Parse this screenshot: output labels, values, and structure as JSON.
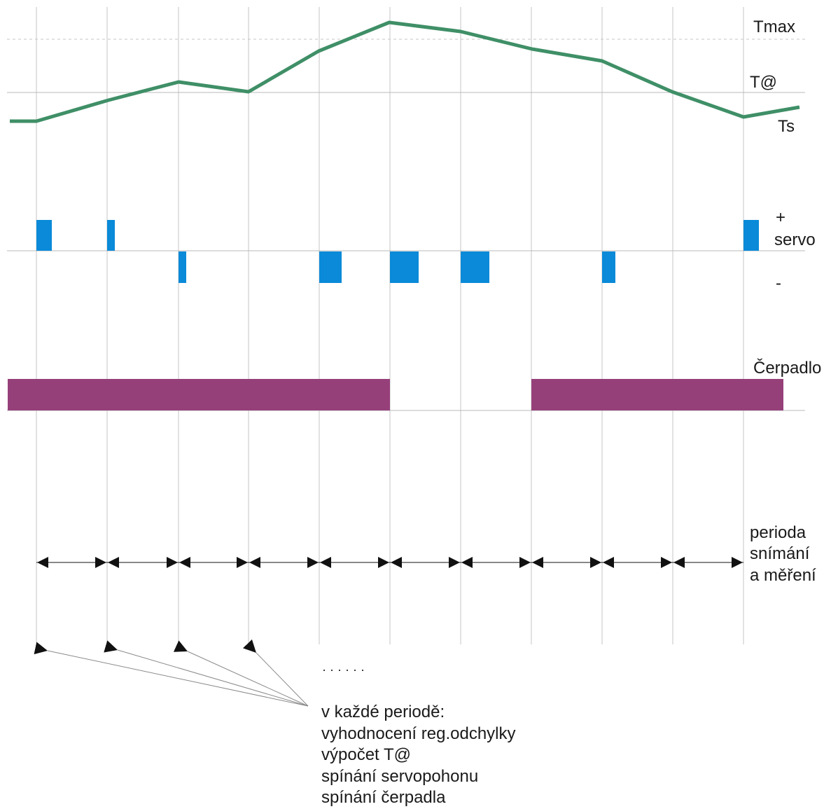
{
  "labels": {
    "tmax": "Tmax",
    "t_at": "T@",
    "ts": "Ts",
    "plus": "+",
    "servo": "servo",
    "minus": "-",
    "pump": "Čerpadlo",
    "period_lines": [
      "perioda",
      "snímání",
      "a měření"
    ],
    "dots": "· · · · · ·",
    "note_lines": [
      "v každé periodě:",
      "vyhodnocení reg.odchylky",
      "výpočet T@",
      "spínání servopohonu",
      "spínání čerpadla"
    ]
  },
  "colors": {
    "temperature_line": "#3f8f67",
    "servo_pulse": "#0a8ad8",
    "pump_bar": "#96407a",
    "grid": "#c4c4c4",
    "arrow": "#111111"
  }
}
